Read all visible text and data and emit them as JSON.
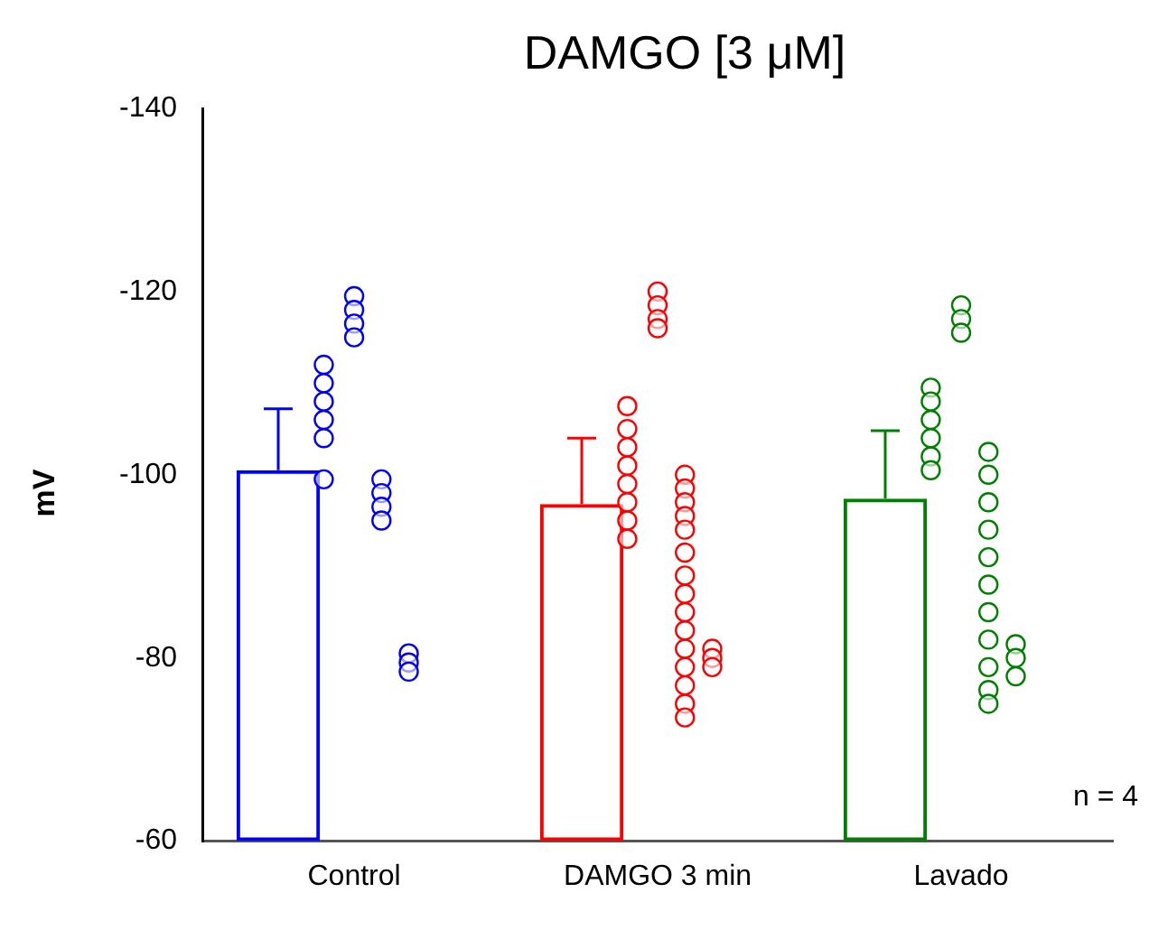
{
  "chart_data": {
    "type": "bar",
    "title": "DAMGO [3 μM]",
    "ylabel": "mV",
    "categories": [
      "Control",
      "DAMGO 3 min",
      "Lavado"
    ],
    "ylim": [
      -60,
      -140
    ],
    "yticks": [
      -60,
      -80,
      -100,
      -120,
      -140
    ],
    "grid": false,
    "legend": false,
    "annotations": [
      "n = 4"
    ],
    "series": [
      {
        "type": "bar",
        "values": [
          -100.5,
          -96.8,
          -97.4
        ],
        "colors": [
          "#0000ff",
          "#ff0000",
          "#008000"
        ],
        "errors": [
          [
            -100.5,
            -107.2
          ],
          [
            -96.8,
            -104
          ],
          [
            -97.4,
            -104.8
          ]
        ]
      },
      {
        "type": "scatter",
        "marker": "circle",
        "x": [
          "Control",
          "Control",
          "Control",
          "Control",
          "Control",
          "Control",
          "DAMGO 3 min",
          "DAMGO 3 min",
          "DAMGO 3 min",
          "DAMGO 3 min",
          "DAMGO 3 min",
          "DAMGO 3 min",
          "DAMGO 3 min",
          "DAMGO 3 min",
          "Lavado",
          "Lavado",
          "Lavado",
          "Lavado",
          "Lavado",
          "Lavado"
        ],
        "values": [
          -112,
          -110,
          -108,
          -106,
          -104,
          -99.5,
          -107.5,
          -105,
          -103,
          -101,
          -99,
          -97,
          -95,
          -93,
          -109.5,
          -108,
          -106,
          -104,
          -102,
          -100.5
        ],
        "colors": [
          "#0000ff",
          "#0000ff",
          "#0000ff",
          "#0000ff",
          "#0000ff",
          "#0000ff",
          "#ff0000",
          "#ff0000",
          "#ff0000",
          "#ff0000",
          "#ff0000",
          "#ff0000",
          "#ff0000",
          "#ff0000",
          "#008000",
          "#008000",
          "#008000",
          "#008000",
          "#008000",
          "#008000"
        ]
      },
      {
        "type": "scatter",
        "marker": "circle",
        "x": [
          "Control",
          "Control",
          "Control",
          "Control",
          "DAMGO 3 min",
          "DAMGO 3 min",
          "DAMGO 3 min",
          "DAMGO 3 min",
          "Lavado",
          "Lavado",
          "Lavado"
        ],
        "values": [
          -119.5,
          -118,
          -116.5,
          -115,
          -120,
          -118.5,
          -117,
          -116,
          -118.5,
          -117,
          -115.5
        ],
        "colors": [
          "#0000ff",
          "#0000ff",
          "#0000ff",
          "#0000ff",
          "#ff0000",
          "#ff0000",
          "#ff0000",
          "#ff0000",
          "#008000",
          "#008000",
          "#008000"
        ]
      },
      {
        "type": "scatter",
        "marker": "circle",
        "x": [
          "Control",
          "Control",
          "Control",
          "Control",
          "DAMGO 3 min",
          "DAMGO 3 min",
          "DAMGO 3 min",
          "DAMGO 3 min",
          "DAMGO 3 min",
          "DAMGO 3 min",
          "DAMGO 3 min",
          "DAMGO 3 min",
          "DAMGO 3 min",
          "DAMGO 3 min",
          "DAMGO 3 min",
          "DAMGO 3 min",
          "DAMGO 3 min",
          "DAMGO 3 min",
          "DAMGO 3 min",
          "Lavado",
          "Lavado",
          "Lavado",
          "Lavado",
          "Lavado",
          "Lavado",
          "Lavado",
          "Lavado",
          "Lavado",
          "Lavado",
          "Lavado"
        ],
        "values": [
          -99.5,
          -98,
          -96.5,
          -95,
          -100,
          -98.5,
          -97,
          -95.5,
          -94,
          -91.5,
          -89,
          -87,
          -85,
          -83,
          -81,
          -79,
          -77,
          -75,
          -73.5,
          -102.5,
          -100,
          -97,
          -94,
          -91,
          -88,
          -85,
          -82,
          -79,
          -76.5,
          -75
        ],
        "colors": [
          "#0000ff",
          "#0000ff",
          "#0000ff",
          "#0000ff",
          "#ff0000",
          "#ff0000",
          "#ff0000",
          "#ff0000",
          "#ff0000",
          "#ff0000",
          "#ff0000",
          "#ff0000",
          "#ff0000",
          "#ff0000",
          "#ff0000",
          "#ff0000",
          "#ff0000",
          "#ff0000",
          "#ff0000",
          "#008000",
          "#008000",
          "#008000",
          "#008000",
          "#008000",
          "#008000",
          "#008000",
          "#008000",
          "#008000",
          "#008000",
          "#008000"
        ]
      },
      {
        "type": "scatter",
        "marker": "circle",
        "x": [
          "Control",
          "Control",
          "Control",
          "DAMGO 3 min",
          "DAMGO 3 min",
          "DAMGO 3 min",
          "Lavado",
          "Lavado",
          "Lavado"
        ],
        "values": [
          -80.5,
          -79.5,
          -78.5,
          -81,
          -80,
          -79,
          -81.5,
          -80,
          -78
        ],
        "colors": [
          "#0000ff",
          "#0000ff",
          "#0000ff",
          "#ff0000",
          "#ff0000",
          "#ff0000",
          "#008000",
          "#008000",
          "#008000"
        ]
      }
    ]
  }
}
